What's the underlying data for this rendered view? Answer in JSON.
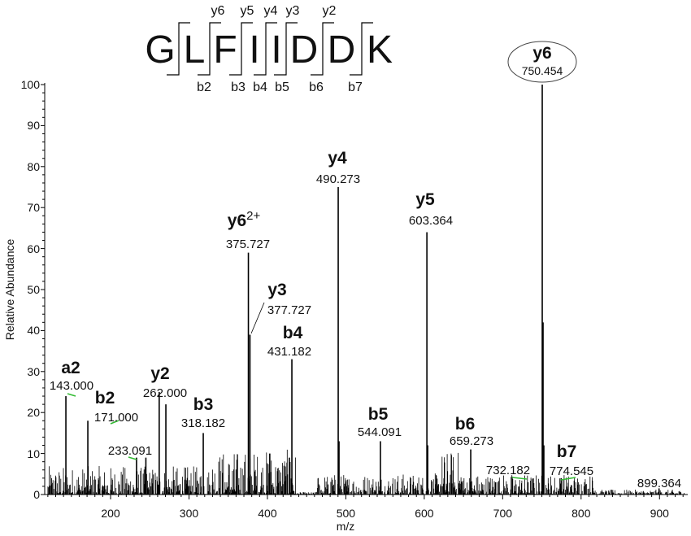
{
  "chart_data": {
    "type": "bar",
    "subtype": "mass-spectrum",
    "xlabel": "m/z",
    "ylabel": "Relative Abundance",
    "xlim": [
      116,
      936
    ],
    "ylim": [
      0,
      100
    ],
    "xticks": [
      200,
      300,
      400,
      500,
      600,
      700,
      800,
      900
    ],
    "yticks": [
      0,
      10,
      20,
      30,
      40,
      50,
      60,
      70,
      80,
      90,
      100
    ],
    "peptide": [
      "G",
      "L",
      "F",
      "I",
      "I",
      "D",
      "D",
      "K"
    ],
    "y_fragments": [
      "y6",
      "y5",
      "y4",
      "y3",
      "y2"
    ],
    "b_fragments": [
      "b2",
      "b3",
      "b4",
      "b5",
      "b6",
      "b7"
    ],
    "peaks": [
      {
        "mz": 143.0,
        "intensity": 24,
        "ion": "a2",
        "label": "143.000"
      },
      {
        "mz": 171.0,
        "intensity": 18,
        "ion": "b2",
        "label": "171.000"
      },
      {
        "mz": 233.091,
        "intensity": 9,
        "ion": "",
        "label": "233.091"
      },
      {
        "mz": 245.0,
        "intensity": 9
      },
      {
        "mz": 262.0,
        "intensity": 25,
        "ion": "y2",
        "label": "262.000"
      },
      {
        "mz": 270.5,
        "intensity": 22
      },
      {
        "mz": 318.182,
        "intensity": 15,
        "ion": "b3",
        "label": "318.182"
      },
      {
        "mz": 375.727,
        "intensity": 59,
        "ion": "y6",
        "charge": "2+",
        "label": "375.727"
      },
      {
        "mz": 377.727,
        "intensity": 39,
        "ion": "y3",
        "label": "377.727"
      },
      {
        "mz": 403.0,
        "intensity": 10
      },
      {
        "mz": 428.0,
        "intensity": 9
      },
      {
        "mz": 431.182,
        "intensity": 33,
        "ion": "b4",
        "label": "431.182"
      },
      {
        "mz": 490.273,
        "intensity": 75,
        "ion": "y4",
        "label": "490.273"
      },
      {
        "mz": 491.3,
        "intensity": 13
      },
      {
        "mz": 544.091,
        "intensity": 13,
        "ion": "b5",
        "label": "544.091"
      },
      {
        "mz": 603.364,
        "intensity": 64,
        "ion": "y5",
        "label": "603.364"
      },
      {
        "mz": 604.4,
        "intensity": 12
      },
      {
        "mz": 659.273,
        "intensity": 11,
        "ion": "b6",
        "label": "659.273"
      },
      {
        "mz": 691.0,
        "intensity": 3
      },
      {
        "mz": 732.182,
        "intensity": 3,
        "ion": "",
        "label": "732.182"
      },
      {
        "mz": 750.454,
        "intensity": 100,
        "ion": "y6",
        "label": "750.454"
      },
      {
        "mz": 751.5,
        "intensity": 42
      },
      {
        "mz": 752.5,
        "intensity": 12
      },
      {
        "mz": 774.545,
        "intensity": 4,
        "ion": "b7",
        "label": "774.545"
      },
      {
        "mz": 899.364,
        "intensity": 1.5,
        "ion": "",
        "label": "899.364"
      }
    ],
    "colors": {
      "peaks": "#000000",
      "highlight": "#33bb33"
    }
  }
}
